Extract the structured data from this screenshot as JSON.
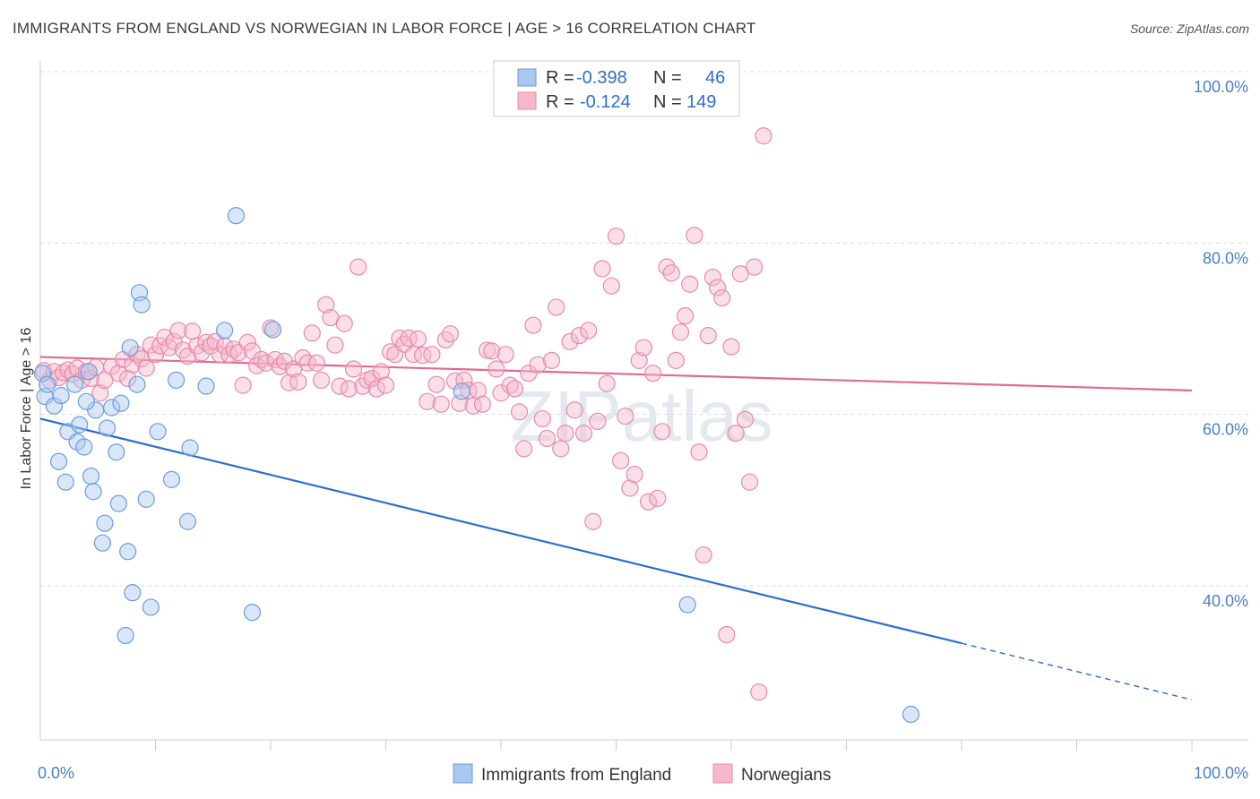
{
  "title": "IMMIGRANTS FROM ENGLAND VS NORWEGIAN IN LABOR FORCE | AGE > 16 CORRELATION CHART",
  "source": "Source: ZipAtlas.com",
  "colors": {
    "blue_fill": "#a9c8f0",
    "blue_stroke": "#6a9de0",
    "blue_line": "#2b6fd1",
    "pink_fill": "#f5b8cb",
    "pink_stroke": "#e88aa8",
    "pink_line": "#e06a94",
    "grid": "#dddddd",
    "tick_text": "#4a7fc8"
  },
  "legend": {
    "rows": [
      {
        "r_label": "R =",
        "r_value": "-0.398",
        "n_label": "N =",
        "n_value": "46",
        "color": "blue"
      },
      {
        "r_label": "R =",
        "r_value": "-0.124",
        "n_label": "N =",
        "n_value": "149",
        "color": "pink"
      }
    ]
  },
  "watermark": "ZIPatlas",
  "chart_data": {
    "type": "scatter",
    "title": "IMMIGRANTS FROM ENGLAND VS NORWEGIAN IN LABOR FORCE | AGE > 16 CORRELATION CHART",
    "xlabel": "",
    "ylabel": "In Labor Force | Age > 16",
    "xlim": [
      0,
      100
    ],
    "ylim": [
      20,
      102
    ],
    "x_tick_labels": [
      "0.0%",
      "100.0%"
    ],
    "y_ticks": [
      40,
      60,
      80,
      100
    ],
    "y_tick_labels": [
      "40.0%",
      "60.0%",
      "80.0%",
      "100.0%"
    ],
    "grid": true,
    "legend_position": "top-center",
    "series": [
      {
        "name": "Immigrants from England",
        "color": "blue",
        "r": -0.398,
        "n": 46,
        "trend": {
          "x0": 0,
          "y0": 59.5,
          "x1": 80,
          "y1": 33.3,
          "dash_to_x": 100,
          "dash_to_y": 26.7
        },
        "points": [
          [
            0.2,
            64.8
          ],
          [
            0.4,
            62.1
          ],
          [
            0.6,
            63.5
          ],
          [
            1.2,
            61.0
          ],
          [
            1.8,
            62.2
          ],
          [
            1.6,
            54.5
          ],
          [
            2.2,
            52.1
          ],
          [
            2.4,
            58.0
          ],
          [
            3.0,
            63.5
          ],
          [
            3.2,
            56.8
          ],
          [
            3.4,
            58.8
          ],
          [
            3.8,
            56.2
          ],
          [
            4.4,
            52.8
          ],
          [
            4.6,
            51.0
          ],
          [
            4.8,
            60.5
          ],
          [
            5.4,
            45.0
          ],
          [
            5.8,
            58.4
          ],
          [
            5.6,
            47.3
          ],
          [
            6.2,
            60.8
          ],
          [
            6.6,
            55.6
          ],
          [
            6.8,
            49.6
          ],
          [
            7.0,
            61.3
          ],
          [
            7.4,
            34.2
          ],
          [
            7.6,
            44.0
          ],
          [
            7.8,
            67.8
          ],
          [
            8.0,
            39.2
          ],
          [
            8.4,
            63.5
          ],
          [
            8.6,
            74.2
          ],
          [
            8.8,
            72.8
          ],
          [
            9.2,
            50.1
          ],
          [
            9.6,
            37.5
          ],
          [
            10.2,
            58.0
          ],
          [
            11.4,
            52.4
          ],
          [
            11.8,
            64.0
          ],
          [
            12.8,
            47.5
          ],
          [
            13.0,
            56.1
          ],
          [
            14.4,
            63.3
          ],
          [
            16.0,
            69.8
          ],
          [
            17.0,
            83.2
          ],
          [
            18.4,
            36.9
          ],
          [
            20.2,
            69.9
          ],
          [
            36.6,
            62.7
          ],
          [
            56.2,
            37.8
          ],
          [
            75.6,
            25.0
          ],
          [
            4.2,
            65.0
          ],
          [
            4.0,
            61.5
          ]
        ]
      },
      {
        "name": "Norwegians",
        "color": "pink",
        "r": -0.124,
        "n": 149,
        "trend": {
          "x0": 0,
          "y0": 66.7,
          "x1": 100,
          "y1": 62.8
        },
        "points": [
          [
            0.3,
            65.1
          ],
          [
            0.8,
            64.0
          ],
          [
            1.2,
            65.0
          ],
          [
            1.6,
            64.3
          ],
          [
            2.0,
            64.9
          ],
          [
            2.4,
            65.2
          ],
          [
            2.8,
            64.7
          ],
          [
            3.2,
            65.4
          ],
          [
            3.6,
            64.0
          ],
          [
            4.0,
            65.0
          ],
          [
            4.4,
            64.2
          ],
          [
            4.8,
            65.5
          ],
          [
            5.2,
            62.5
          ],
          [
            5.6,
            64.0
          ],
          [
            6.2,
            65.6
          ],
          [
            6.8,
            64.8
          ],
          [
            7.2,
            66.4
          ],
          [
            7.6,
            64.2
          ],
          [
            8.0,
            65.8
          ],
          [
            8.4,
            67.0
          ],
          [
            8.8,
            66.5
          ],
          [
            9.2,
            65.4
          ],
          [
            9.6,
            68.1
          ],
          [
            10.0,
            67.0
          ],
          [
            10.4,
            68.0
          ],
          [
            10.8,
            69.0
          ],
          [
            11.2,
            67.8
          ],
          [
            11.6,
            68.5
          ],
          [
            12.0,
            69.8
          ],
          [
            12.4,
            67.5
          ],
          [
            12.8,
            66.8
          ],
          [
            13.2,
            69.7
          ],
          [
            13.6,
            68.0
          ],
          [
            14.0,
            67.2
          ],
          [
            14.4,
            68.4
          ],
          [
            14.8,
            68.0
          ],
          [
            15.2,
            68.5
          ],
          [
            15.6,
            67.0
          ],
          [
            16.0,
            68.0
          ],
          [
            16.4,
            67.0
          ],
          [
            16.8,
            67.6
          ],
          [
            17.2,
            67.2
          ],
          [
            17.6,
            63.4
          ],
          [
            18.0,
            68.4
          ],
          [
            18.4,
            67.4
          ],
          [
            18.8,
            65.7
          ],
          [
            19.2,
            66.4
          ],
          [
            19.6,
            66.0
          ],
          [
            20.0,
            70.1
          ],
          [
            20.4,
            66.4
          ],
          [
            20.8,
            65.6
          ],
          [
            21.2,
            66.2
          ],
          [
            21.6,
            63.7
          ],
          [
            22.0,
            65.3
          ],
          [
            22.4,
            63.8
          ],
          [
            22.8,
            66.6
          ],
          [
            23.2,
            66.0
          ],
          [
            23.6,
            69.5
          ],
          [
            24.0,
            66.0
          ],
          [
            24.4,
            64.0
          ],
          [
            24.8,
            72.8
          ],
          [
            25.2,
            71.3
          ],
          [
            25.6,
            68.1
          ],
          [
            26.0,
            63.3
          ],
          [
            26.4,
            70.6
          ],
          [
            26.8,
            63.0
          ],
          [
            27.2,
            65.3
          ],
          [
            27.6,
            77.2
          ],
          [
            28.0,
            63.3
          ],
          [
            28.4,
            64.0
          ],
          [
            28.8,
            64.2
          ],
          [
            29.2,
            63.0
          ],
          [
            29.6,
            65.0
          ],
          [
            30.0,
            63.4
          ],
          [
            30.4,
            67.3
          ],
          [
            30.8,
            67.0
          ],
          [
            31.2,
            68.9
          ],
          [
            31.6,
            68.2
          ],
          [
            32.0,
            68.9
          ],
          [
            32.4,
            67.0
          ],
          [
            32.8,
            68.8
          ],
          [
            33.2,
            66.9
          ],
          [
            33.6,
            61.5
          ],
          [
            34.0,
            67.0
          ],
          [
            34.4,
            63.5
          ],
          [
            34.8,
            61.2
          ],
          [
            35.2,
            68.7
          ],
          [
            35.6,
            69.4
          ],
          [
            36.0,
            63.9
          ],
          [
            36.4,
            61.3
          ],
          [
            36.8,
            64.0
          ],
          [
            37.2,
            62.8
          ],
          [
            37.6,
            61.0
          ],
          [
            38.0,
            62.8
          ],
          [
            38.4,
            61.2
          ],
          [
            38.8,
            67.5
          ],
          [
            39.2,
            67.4
          ],
          [
            39.6,
            65.3
          ],
          [
            40.0,
            62.5
          ],
          [
            40.4,
            67.0
          ],
          [
            40.8,
            63.4
          ],
          [
            41.2,
            63.0
          ],
          [
            41.6,
            60.3
          ],
          [
            42.0,
            56.0
          ],
          [
            42.4,
            64.8
          ],
          [
            42.8,
            70.4
          ],
          [
            43.2,
            65.8
          ],
          [
            43.6,
            59.5
          ],
          [
            44.0,
            57.2
          ],
          [
            44.4,
            66.3
          ],
          [
            44.8,
            72.5
          ],
          [
            45.2,
            56.0
          ],
          [
            45.6,
            57.8
          ],
          [
            46.0,
            68.5
          ],
          [
            46.4,
            60.5
          ],
          [
            46.8,
            69.2
          ],
          [
            47.2,
            57.8
          ],
          [
            47.6,
            69.8
          ],
          [
            48.0,
            47.5
          ],
          [
            48.4,
            59.2
          ],
          [
            48.8,
            77.0
          ],
          [
            49.2,
            63.6
          ],
          [
            49.6,
            75.0
          ],
          [
            50.0,
            80.8
          ],
          [
            50.4,
            54.6
          ],
          [
            50.8,
            59.8
          ],
          [
            51.2,
            51.4
          ],
          [
            51.6,
            53.0
          ],
          [
            52.0,
            66.3
          ],
          [
            52.4,
            67.8
          ],
          [
            52.8,
            49.8
          ],
          [
            53.2,
            64.8
          ],
          [
            53.6,
            50.2
          ],
          [
            54.0,
            58.0
          ],
          [
            54.4,
            77.2
          ],
          [
            54.8,
            76.5
          ],
          [
            55.2,
            66.3
          ],
          [
            55.6,
            69.6
          ],
          [
            56.0,
            71.5
          ],
          [
            56.4,
            75.2
          ],
          [
            56.8,
            80.9
          ],
          [
            57.2,
            55.6
          ],
          [
            57.6,
            43.6
          ],
          [
            58.0,
            69.2
          ],
          [
            58.4,
            76.0
          ],
          [
            58.8,
            74.8
          ],
          [
            59.2,
            73.6
          ],
          [
            59.6,
            34.3
          ],
          [
            60.0,
            67.9
          ],
          [
            60.4,
            57.8
          ],
          [
            60.8,
            76.4
          ],
          [
            61.2,
            59.4
          ],
          [
            61.6,
            52.1
          ],
          [
            62.0,
            77.2
          ],
          [
            62.4,
            27.6
          ],
          [
            62.8,
            92.5
          ]
        ]
      }
    ]
  },
  "bottom_legend": [
    {
      "label": "Immigrants from England",
      "color": "blue"
    },
    {
      "label": "Norwegians",
      "color": "pink"
    }
  ]
}
